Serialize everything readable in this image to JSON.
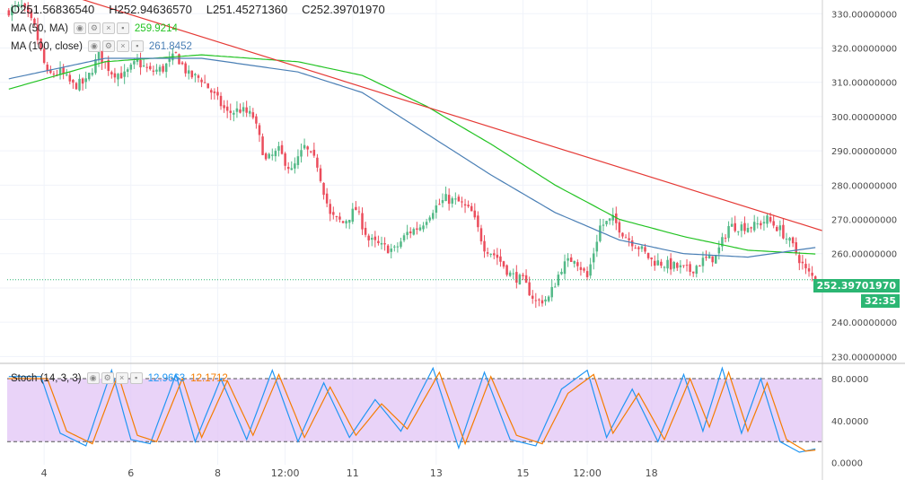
{
  "ohlc": {
    "o": "O251.56836540",
    "h": "H252.94636570",
    "l": "L251.45271360",
    "c": "C252.39701970"
  },
  "indicators": {
    "ma50": {
      "label": "MA (50, MA)",
      "value": "259.9214",
      "color": "#22c322"
    },
    "ma100": {
      "label": "MA (100, close)",
      "value": "261.8452",
      "color": "#4a7fb5"
    },
    "stoch": {
      "label": "Stoch (14, 3, 3)",
      "k": "12.9663",
      "d": "12.1712",
      "k_color": "#2196f3",
      "d_color": "#f57c00"
    }
  },
  "price_tag": {
    "value": "252.39701970",
    "countdown": "32:35"
  },
  "colors": {
    "up": "#53b987",
    "down": "#eb4d5c",
    "trend": "#e53935",
    "band_fill": "#e1c4f5"
  },
  "chart_data": [
    {
      "type": "candlestick",
      "title": "",
      "x_tick_labels": [
        "4",
        "6",
        "8",
        "12:00",
        "11",
        "13",
        "15",
        "12:00",
        "18"
      ],
      "y_tick_labels": [
        "230.00000000",
        "240.00000000",
        "250.00000000",
        "260.00000000",
        "270.00000000",
        "280.00000000",
        "290.00000000",
        "300.00000000",
        "310.00000000",
        "320.00000000",
        "330.00000000"
      ],
      "ylim": [
        228,
        334
      ],
      "close_anchors": [
        [
          0,
          331
        ],
        [
          4,
          332
        ],
        [
          8,
          326
        ],
        [
          12,
          312
        ],
        [
          16,
          313
        ],
        [
          20,
          309
        ],
        [
          24,
          310
        ],
        [
          28,
          318
        ],
        [
          32,
          313
        ],
        [
          36,
          312
        ],
        [
          40,
          316
        ],
        [
          44,
          313
        ],
        [
          48,
          314
        ],
        [
          52,
          318
        ],
        [
          56,
          312
        ],
        [
          60,
          311
        ],
        [
          64,
          306
        ],
        [
          68,
          301
        ],
        [
          72,
          302
        ],
        [
          76,
          300
        ],
        [
          80,
          287
        ],
        [
          84,
          290
        ],
        [
          88,
          284
        ],
        [
          92,
          291
        ],
        [
          96,
          286
        ],
        [
          100,
          271
        ],
        [
          104,
          269
        ],
        [
          108,
          273
        ],
        [
          112,
          264
        ],
        [
          116,
          262
        ],
        [
          120,
          261
        ],
        [
          124,
          266
        ],
        [
          128,
          268
        ],
        [
          132,
          273
        ],
        [
          136,
          276
        ],
        [
          140,
          275
        ],
        [
          144,
          272
        ],
        [
          148,
          262
        ],
        [
          152,
          259
        ],
        [
          156,
          254
        ],
        [
          160,
          252
        ],
        [
          164,
          246
        ],
        [
          168,
          247
        ],
        [
          172,
          256
        ],
        [
          176,
          259
        ],
        [
          180,
          253
        ],
        [
          184,
          268
        ],
        [
          188,
          270
        ],
        [
          192,
          265
        ],
        [
          196,
          262
        ],
        [
          200,
          258
        ],
        [
          204,
          257
        ],
        [
          208,
          256
        ],
        [
          212,
          255
        ],
        [
          216,
          258
        ],
        [
          220,
          259
        ],
        [
          224,
          268
        ],
        [
          228,
          268
        ],
        [
          232,
          268
        ],
        [
          236,
          270
        ],
        [
          240,
          267
        ],
        [
          244,
          262
        ],
        [
          248,
          255
        ],
        [
          251,
          252.4
        ]
      ],
      "series": [
        {
          "name": "MA (50, MA)",
          "values": [
            [
              0,
              308
            ],
            [
              30,
              316
            ],
            [
              60,
              318
            ],
            [
              90,
              316
            ],
            [
              110,
              312
            ],
            [
              130,
              303
            ],
            [
              150,
              292
            ],
            [
              170,
              280
            ],
            [
              190,
              270
            ],
            [
              210,
              265
            ],
            [
              230,
              261
            ],
            [
              251,
              259.9
            ]
          ]
        },
        {
          "name": "MA (100, close)",
          "values": [
            [
              0,
              311
            ],
            [
              30,
              317
            ],
            [
              60,
              317
            ],
            [
              90,
              313
            ],
            [
              110,
              307
            ],
            [
              130,
              295
            ],
            [
              150,
              283
            ],
            [
              170,
              272
            ],
            [
              190,
              264
            ],
            [
              210,
              260
            ],
            [
              230,
              259
            ],
            [
              251,
              261.8
            ]
          ]
        }
      ],
      "trendline": [
        [
          20,
          335
        ],
        [
          251,
          267
        ]
      ],
      "last_price": 252.4
    },
    {
      "type": "line",
      "title": "",
      "y_tick_labels": [
        "0.0000",
        "40.0000",
        "80.0000"
      ],
      "ylim": [
        -2,
        92
      ],
      "band": [
        20,
        80
      ],
      "series": [
        {
          "name": "%K",
          "values": [
            [
              0,
              82
            ],
            [
              10,
              82
            ],
            [
              16,
              28
            ],
            [
              24,
              16
            ],
            [
              32,
              88
            ],
            [
              38,
              22
            ],
            [
              44,
              18
            ],
            [
              52,
              84
            ],
            [
              58,
              20
            ],
            [
              66,
              80
            ],
            [
              74,
              22
            ],
            [
              82,
              88
            ],
            [
              90,
              20
            ],
            [
              98,
              76
            ],
            [
              106,
              24
            ],
            [
              114,
              60
            ],
            [
              122,
              30
            ],
            [
              132,
              90
            ],
            [
              140,
              14
            ],
            [
              148,
              86
            ],
            [
              156,
              22
            ],
            [
              164,
              16
            ],
            [
              172,
              70
            ],
            [
              180,
              88
            ],
            [
              186,
              24
            ],
            [
              194,
              70
            ],
            [
              202,
              20
            ],
            [
              210,
              84
            ],
            [
              216,
              30
            ],
            [
              222,
              90
            ],
            [
              228,
              28
            ],
            [
              234,
              80
            ],
            [
              240,
              20
            ],
            [
              246,
              10
            ],
            [
              251,
              13
            ]
          ]
        },
        {
          "name": "%D",
          "values": [
            [
              0,
              80
            ],
            [
              12,
              80
            ],
            [
              18,
              30
            ],
            [
              26,
              18
            ],
            [
              34,
              84
            ],
            [
              40,
              26
            ],
            [
              46,
              20
            ],
            [
              54,
              80
            ],
            [
              60,
              24
            ],
            [
              68,
              78
            ],
            [
              76,
              26
            ],
            [
              84,
              84
            ],
            [
              92,
              24
            ],
            [
              100,
              72
            ],
            [
              108,
              26
            ],
            [
              116,
              56
            ],
            [
              124,
              32
            ],
            [
              134,
              86
            ],
            [
              142,
              18
            ],
            [
              150,
              82
            ],
            [
              158,
              26
            ],
            [
              166,
              18
            ],
            [
              174,
              66
            ],
            [
              182,
              84
            ],
            [
              188,
              28
            ],
            [
              196,
              66
            ],
            [
              204,
              22
            ],
            [
              212,
              80
            ],
            [
              218,
              34
            ],
            [
              224,
              86
            ],
            [
              230,
              30
            ],
            [
              236,
              76
            ],
            [
              242,
              22
            ],
            [
              248,
              11
            ],
            [
              251,
              12
            ]
          ]
        }
      ]
    }
  ]
}
